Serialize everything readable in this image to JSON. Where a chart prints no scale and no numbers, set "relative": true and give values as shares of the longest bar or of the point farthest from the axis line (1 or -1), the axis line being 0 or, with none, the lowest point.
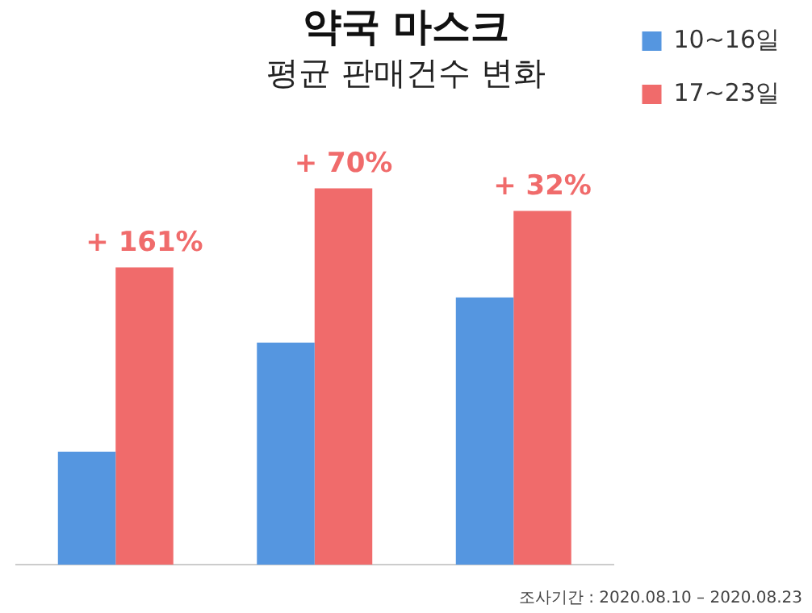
{
  "chart_data": {
    "type": "bar",
    "title": "약국 마스크",
    "subtitle": "평균 판매건수 변화",
    "relative": true,
    "categories": [
      null,
      null,
      null
    ],
    "legend": "right",
    "series": [
      {
        "name": "10~16일",
        "color": "#5596e0",
        "values": [
          0.3,
          0.59,
          0.71
        ]
      },
      {
        "name": "17~23일",
        "color": "#f06b6b",
        "values": [
          0.79,
          1,
          0.94
        ]
      }
    ],
    "annotations": [
      "+ 161%",
      "+ 70%",
      "+ 32%",
      "조사기간 : 2020.08.10 – 2020.08.23"
    ]
  }
}
